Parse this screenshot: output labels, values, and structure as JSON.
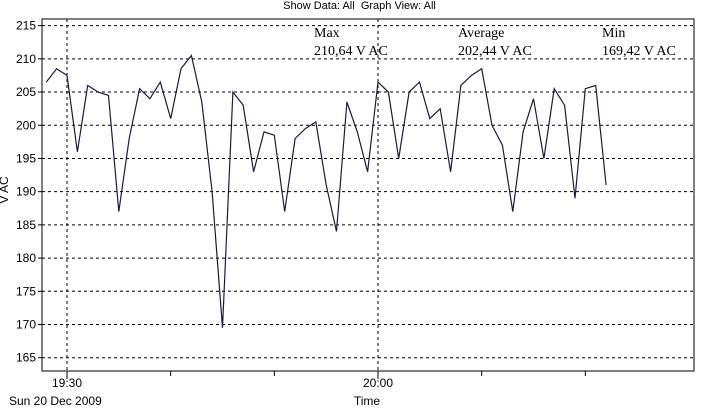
{
  "header": {
    "show_data": "Show Data: All",
    "graph_view": "Graph View: All"
  },
  "stats": {
    "max_label": "Max",
    "max_value": "210,64 V AC",
    "avg_label": "Average",
    "avg_value": "202,44 V AC",
    "min_label": "Min",
    "min_value": "169,42 V AC"
  },
  "colors": {
    "series": "#1a1a40",
    "grid": "#000000"
  },
  "chart_data": {
    "type": "line",
    "xlabel": "Time",
    "ylabel": "V AC",
    "date_label": "Sun 20 Dec 2009",
    "x_range": [
      "19:30",
      "20:22"
    ],
    "x_ticks": [
      "19:30",
      "20:00"
    ],
    "ylim": [
      163,
      216
    ],
    "y_ticks": [
      165,
      170,
      175,
      180,
      185,
      190,
      195,
      200,
      205,
      210,
      215
    ],
    "grid": true,
    "series": [
      {
        "x": [
          "19:28",
          "19:29",
          "19:30",
          "19:31",
          "19:32",
          "19:33",
          "19:34",
          "19:35",
          "19:36",
          "19:37",
          "19:38",
          "19:39",
          "19:40",
          "19:41",
          "19:42",
          "19:43",
          "19:44",
          "19:45",
          "19:46",
          "19:47",
          "19:48",
          "19:49",
          "19:50",
          "19:51",
          "19:52",
          "19:53",
          "19:54",
          "19:55",
          "19:56",
          "19:57",
          "19:58",
          "19:59",
          "20:00",
          "20:01",
          "20:02",
          "20:03",
          "20:04",
          "20:05",
          "20:06",
          "20:07",
          "20:08",
          "20:09",
          "20:10",
          "20:11",
          "20:12",
          "20:13",
          "20:14",
          "20:15",
          "20:16",
          "20:17",
          "20:18",
          "20:19",
          "20:20",
          "20:21",
          "20:22"
        ],
        "values": [
          206.5,
          208.5,
          207.5,
          196.0,
          206.0,
          205.0,
          204.5,
          187.0,
          198.0,
          205.5,
          204.0,
          206.5,
          201.0,
          208.5,
          210.5,
          203.5,
          190.0,
          169.5,
          205.0,
          203.0,
          193.0,
          199.0,
          198.5,
          187.0,
          198.0,
          199.5,
          200.5,
          191.0,
          184.0,
          203.5,
          199.0,
          193.0,
          206.5,
          205.0,
          195.0,
          205.0,
          206.5,
          201.0,
          202.5,
          193.0,
          206.0,
          207.5,
          208.5,
          200.0,
          197.0,
          187.0,
          199.0,
          204.0,
          195.0,
          205.5,
          203.0,
          189.0,
          205.5,
          206.0,
          191.0
        ]
      }
    ]
  }
}
